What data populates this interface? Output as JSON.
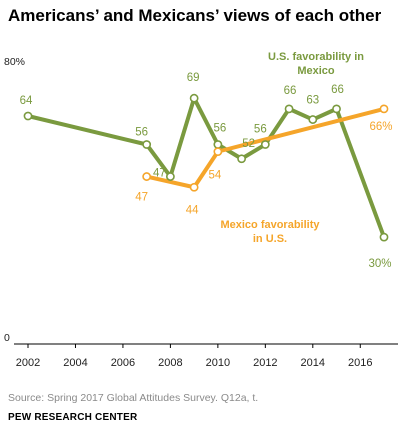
{
  "title": "Americans’ and Mexicans’ views of each other",
  "source": "Source: Spring 2017 Global Attitudes Survey. Q12a, t.",
  "organization": "PEW RESEARCH CENTER",
  "colors": {
    "green": "#7a9a3f",
    "orange": "#f5a52a",
    "axis": "#000000",
    "label_gray": "#555555"
  },
  "chart_data": {
    "type": "line",
    "ylim": [
      0,
      80
    ],
    "xlim": [
      2002,
      2017
    ],
    "y_tick_labels": [
      {
        "value": 80,
        "label": "80%"
      },
      {
        "value": 0,
        "label": "0"
      }
    ],
    "x_tick_labels": [
      "2002",
      "2004",
      "2006",
      "2008",
      "2010",
      "2012",
      "2014",
      "2016"
    ],
    "x_ticks": [
      2002,
      2004,
      2006,
      2008,
      2010,
      2012,
      2014,
      2016
    ],
    "series": [
      {
        "name": "U.S. favorability in Mexico",
        "label_lines": [
          "U.S. favorability in",
          "Mexico"
        ],
        "color": "#7a9a3f",
        "points": [
          {
            "x": 2002,
            "y": 64,
            "label": "64"
          },
          {
            "x": 2007,
            "y": 56,
            "label": "56"
          },
          {
            "x": 2008,
            "y": 47,
            "label": "47"
          },
          {
            "x": 2009,
            "y": 69,
            "label": "69"
          },
          {
            "x": 2010,
            "y": 56,
            "label": "56"
          },
          {
            "x": 2011,
            "y": 52,
            "label": "52"
          },
          {
            "x": 2012,
            "y": 56,
            "label": "56"
          },
          {
            "x": 2013,
            "y": 66,
            "label": "66"
          },
          {
            "x": 2014,
            "y": 63,
            "label": "63"
          },
          {
            "x": 2015,
            "y": 66,
            "label": "66"
          },
          {
            "x": 2017,
            "y": 30,
            "label": "30%"
          }
        ]
      },
      {
        "name": "Mexico favorability in U.S.",
        "label_lines": [
          "Mexico favorability",
          "in U.S."
        ],
        "color": "#f5a52a",
        "points": [
          {
            "x": 2007,
            "y": 47,
            "label": "47"
          },
          {
            "x": 2009,
            "y": 44,
            "label": "44"
          },
          {
            "x": 2010,
            "y": 54,
            "label": "54"
          },
          {
            "x": 2017,
            "y": 66,
            "label": "66%"
          }
        ]
      }
    ]
  }
}
